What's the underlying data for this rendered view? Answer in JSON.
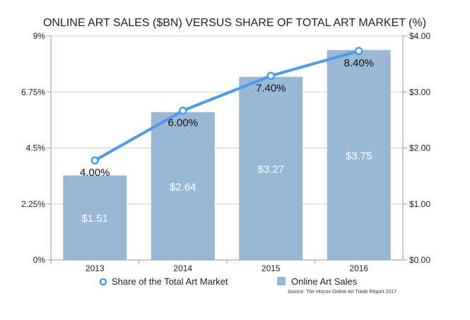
{
  "chart_data": {
    "type": "bar",
    "title": "ONLINE ART SALES ($BN) VERSUS SHARE OF TOTAL ART MARKET (%)",
    "categories": [
      "2013",
      "2014",
      "2015",
      "2016"
    ],
    "series": [
      {
        "name": "Online Art Sales",
        "type": "bar",
        "axis": "right",
        "values": [
          1.51,
          2.64,
          3.27,
          3.75
        ],
        "labels": [
          "$1.51",
          "$2.64",
          "$3.27",
          "$3.75"
        ],
        "color": "#9bb7d6"
      },
      {
        "name": "Share of the Total Art Market",
        "type": "line",
        "axis": "left",
        "values": [
          4.0,
          6.0,
          7.4,
          8.4
        ],
        "labels": [
          "4.00%",
          "6.00%",
          "7.40%",
          "8.40%"
        ],
        "color": "#4a9be8"
      }
    ],
    "y_left": {
      "ylim": [
        0,
        9
      ],
      "ticks": [
        0,
        2.25,
        4.5,
        6.75,
        9
      ],
      "tick_labels": [
        "0%",
        "2.25%",
        "4.5%",
        "6.75%",
        "9%"
      ]
    },
    "y_right": {
      "ylim": [
        0,
        4
      ],
      "ticks": [
        0,
        1,
        2,
        3,
        4
      ],
      "tick_labels": [
        "$0.00",
        "$1.00",
        "$2.00",
        "$3.00",
        "$4.00"
      ]
    },
    "xlabel": "",
    "ylabel": "",
    "grid": true,
    "legend": "bottom",
    "source": "Source: The Hiscox Online Art Trade Report 2017"
  }
}
